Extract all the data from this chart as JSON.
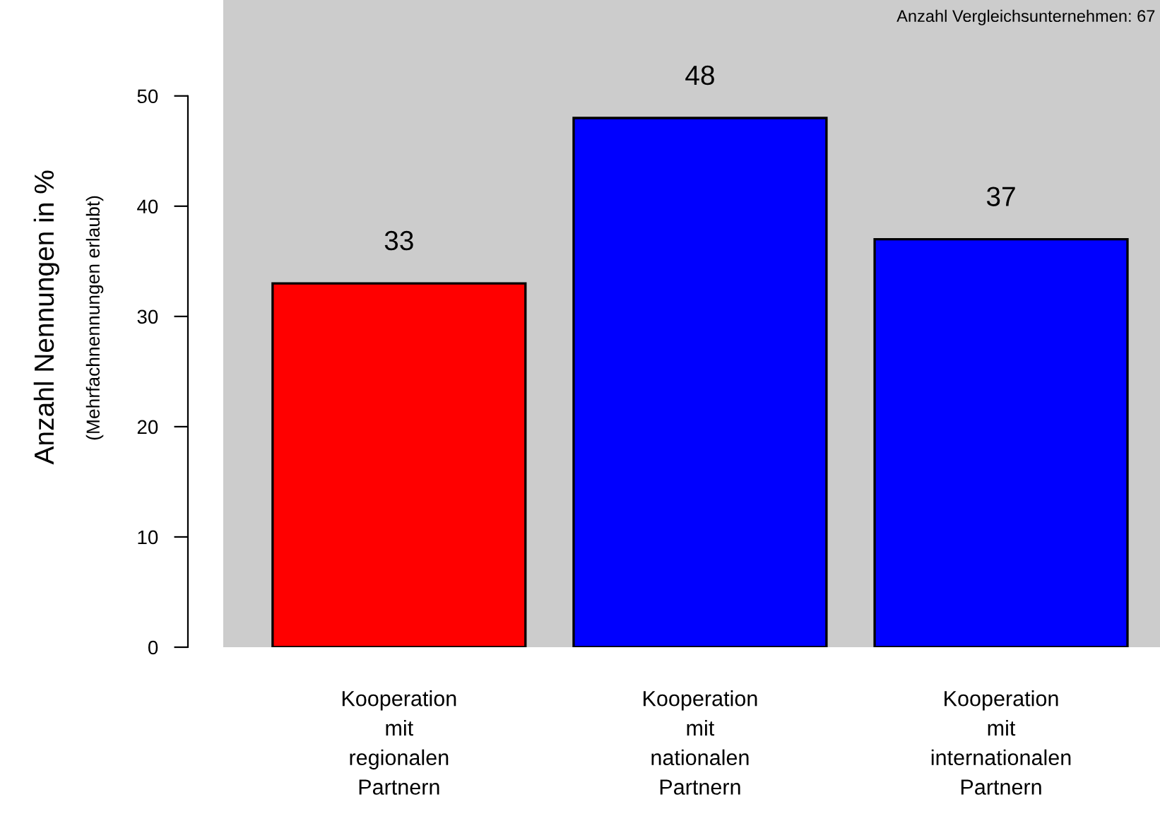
{
  "chart_data": {
    "type": "bar",
    "ylabel": "Anzahl Nennungen in %",
    "categories": [
      "Kooperation\nmit\nregionalen\nPartnern",
      "Kooperation\nmit\nnationalen\nPartnern",
      "Kooperation\nmit\ninternationalen\nPartnern"
    ],
    "values": [
      33,
      48,
      37
    ],
    "colors": [
      "#ff0000",
      "#0000ff",
      "#0000ff"
    ],
    "ylim": [
      0,
      58.7
    ],
    "yticks": [
      0,
      10,
      20,
      30,
      40,
      50
    ],
    "data_labels": true,
    "grid": false,
    "legend": false,
    "annotations": [
      "(Mehrfachnennungen erlaubt)",
      "Anzahl Vergleichsunternehmen: 67"
    ]
  }
}
